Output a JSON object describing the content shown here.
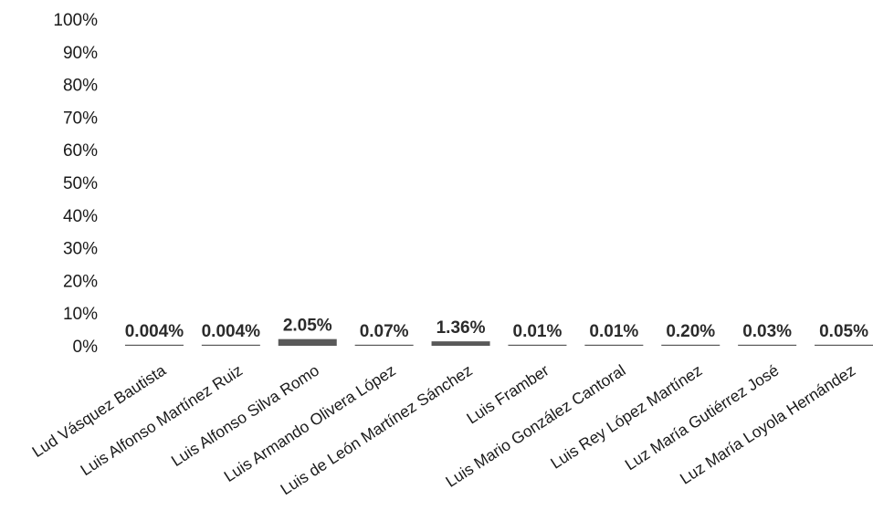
{
  "chart_data": {
    "type": "bar",
    "title": "",
    "xlabel": "",
    "ylabel": "",
    "ylim": [
      0,
      100
    ],
    "y_ticks": [
      "0%",
      "10%",
      "20%",
      "30%",
      "40%",
      "50%",
      "60%",
      "70%",
      "80%",
      "90%",
      "100%"
    ],
    "grid": false,
    "legend": "none",
    "bar_color": "#595959",
    "categories": [
      "Lud Vásquez Bautista",
      "Luis Alfonso Martínez Ruiz",
      "Luis Alfonso Silva Romo",
      "Luis Armando Olivera López",
      "Luis de León Martínez Sánchez",
      "Luis Framber",
      "Luis Mario González Cantoral",
      "Luis Rey López Martínez",
      "Luz María Gutiérrez José",
      "Luz María Loyola Hernández"
    ],
    "values": [
      0.004,
      0.004,
      2.05,
      0.07,
      1.36,
      0.01,
      0.01,
      0.2,
      0.03,
      0.05
    ],
    "data_labels": [
      "0.004%",
      "0.004%",
      "2.05%",
      "0.07%",
      "1.36%",
      "0.01%",
      "0.01%",
      "0.20%",
      "0.03%",
      "0.05%"
    ]
  }
}
